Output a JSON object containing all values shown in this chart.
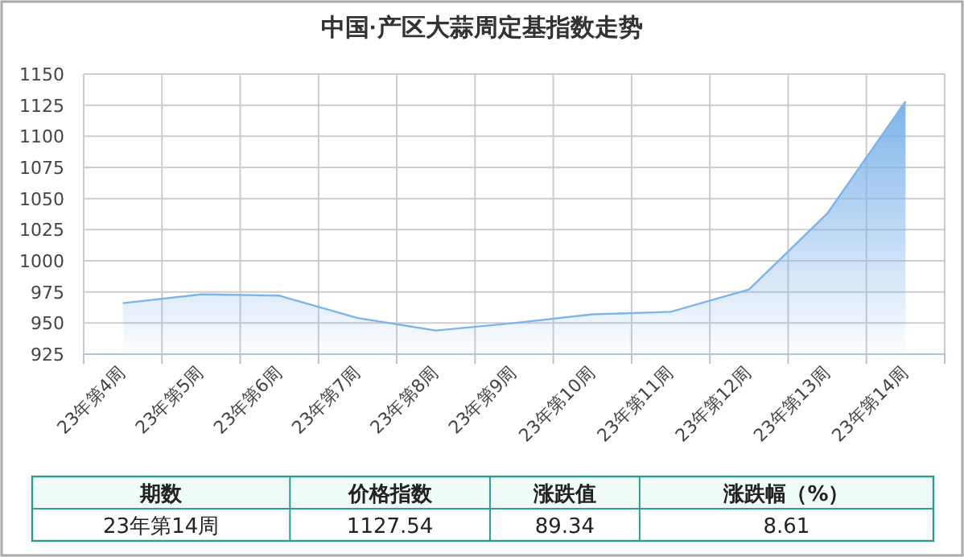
{
  "chart_data": [
    {
      "type": "area",
      "title": "中国·产区大蒜周定基指数走势",
      "categories": [
        "23年第4周",
        "23年第5周",
        "23年第6周",
        "23年第7周",
        "23年第8周",
        "23年第9周",
        "23年第10周",
        "23年第11周",
        "23年第12周",
        "23年第13周",
        "23年第14周"
      ],
      "series": [
        {
          "color": "#7eb4e9",
          "values": [
            966,
            973,
            972,
            954,
            944,
            950,
            957,
            959,
            977,
            1038,
            1128
          ]
        }
      ],
      "ylim": [
        925,
        1150
      ],
      "yticks": [
        925,
        950,
        975,
        1000,
        1025,
        1050,
        1075,
        1100,
        1125,
        1150
      ],
      "grid": true
    },
    {
      "type": "other",
      "annotations": [
        "期数",
        "价格指数",
        "涨跌值",
        "涨跌幅（%）",
        "23年第14周",
        "1127.54",
        "89.34",
        "8.61"
      ]
    }
  ]
}
